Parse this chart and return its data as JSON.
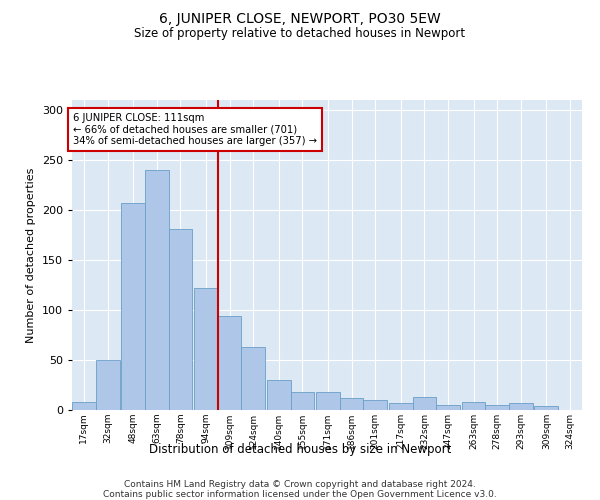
{
  "title": "6, JUNIPER CLOSE, NEWPORT, PO30 5EW",
  "subtitle": "Size of property relative to detached houses in Newport",
  "xlabel": "Distribution of detached houses by size in Newport",
  "ylabel": "Number of detached properties",
  "footer_line1": "Contains HM Land Registry data © Crown copyright and database right 2024.",
  "footer_line2": "Contains public sector information licensed under the Open Government Licence v3.0.",
  "annotation_line1": "6 JUNIPER CLOSE: 111sqm",
  "annotation_line2": "← 66% of detached houses are smaller (701)",
  "annotation_line3": "34% of semi-detached houses are larger (357) →",
  "property_sqm": 111,
  "bin_labels": [
    "17sqm",
    "32sqm",
    "48sqm",
    "63sqm",
    "78sqm",
    "94sqm",
    "109sqm",
    "124sqm",
    "140sqm",
    "155sqm",
    "171sqm",
    "186sqm",
    "201sqm",
    "217sqm",
    "232sqm",
    "247sqm",
    "263sqm",
    "278sqm",
    "293sqm",
    "309sqm",
    "324sqm"
  ],
  "bin_edges": [
    17,
    32,
    48,
    63,
    78,
    94,
    109,
    124,
    140,
    155,
    171,
    186,
    201,
    217,
    232,
    247,
    263,
    278,
    293,
    309,
    324
  ],
  "bin_width": 15,
  "bar_heights": [
    8,
    50,
    207,
    240,
    181,
    122,
    94,
    63,
    30,
    18,
    18,
    12,
    10,
    7,
    13,
    5,
    8,
    5,
    7,
    4,
    0
  ],
  "bar_color": "#aec6e8",
  "bar_edge_color": "#6a9fc8",
  "vline_color": "#cc0000",
  "vline_x": 109,
  "annotation_box_color": "#cc0000",
  "background_color": "#dde8f5",
  "ylim": [
    0,
    310
  ],
  "yticks": [
    0,
    50,
    100,
    150,
    200,
    250,
    300
  ]
}
